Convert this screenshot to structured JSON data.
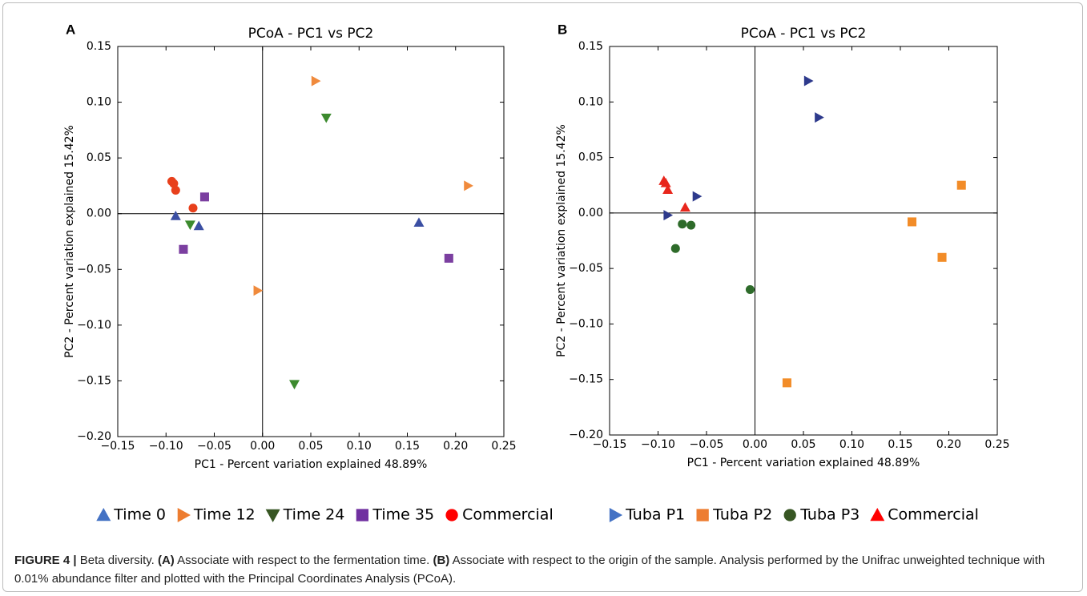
{
  "chart_data": [
    {
      "type": "scatter",
      "panel": "A",
      "title": "PCoA - PC1 vs PC2",
      "xlabel": "PC1 - Percent variation explained 48.89%",
      "ylabel": "PC2 - Percent variation explained 15.42%",
      "xlim": [
        -0.15,
        0.25
      ],
      "ylim": [
        -0.2,
        0.15
      ],
      "xticks": [
        {
          "value": -0.15,
          "label": "−0.15"
        },
        {
          "value": -0.1,
          "label": "−0.10"
        },
        {
          "value": -0.05,
          "label": "−0.05"
        },
        {
          "value": 0,
          "label": "0.00"
        },
        0.05,
        {
          "value": 0.1,
          "label": "0.10"
        },
        0.15,
        {
          "value": 0.2,
          "label": "0.20"
        },
        0.25
      ],
      "yticks": [
        {
          "value": -0.2,
          "label": "−0.20"
        },
        {
          "value": -0.15,
          "label": "−0.15"
        },
        {
          "value": -0.1,
          "label": "−0.10"
        },
        {
          "value": -0.05,
          "label": "−0.05"
        },
        {
          "value": 0,
          "label": "0.00"
        },
        0.05,
        {
          "value": 0.1,
          "label": "0.10"
        },
        0.15
      ],
      "zero_lines": true,
      "series": [
        {
          "name": "Time 0",
          "color": "#3b4fa3",
          "legend_color": "#4472c4",
          "marker": "^",
          "x": [
            -0.09,
            -0.066,
            0.162
          ],
          "values": [
            -0.002,
            -0.011,
            -0.008
          ]
        },
        {
          "name": "Time 12",
          "color": "#f08a3c",
          "legend_color": "#ed7d31",
          "marker": ">",
          "x": [
            0.055,
            0.213,
            -0.005
          ],
          "values": [
            0.119,
            0.025,
            -0.069
          ]
        },
        {
          "name": "Time 24",
          "color": "#3c8a2e",
          "legend_color": "#375623",
          "marker": "v",
          "x": [
            0.066,
            -0.075,
            0.033
          ],
          "values": [
            0.086,
            -0.01,
            -0.153
          ]
        },
        {
          "name": "Time 35",
          "color": "#7b3fa0",
          "legend_color": "#7030a0",
          "marker": "s",
          "x": [
            -0.06,
            -0.082,
            0.193
          ],
          "values": [
            0.015,
            -0.032,
            -0.04
          ]
        },
        {
          "name": "Commercial",
          "color": "#e8401c",
          "legend_color": "#ff0000",
          "marker": "o",
          "x": [
            -0.094,
            -0.092,
            -0.09,
            -0.072
          ],
          "values": [
            0.029,
            0.027,
            0.021,
            0.005
          ]
        }
      ]
    },
    {
      "type": "scatter",
      "panel": "B",
      "title": "PCoA - PC1 vs PC2",
      "xlabel": "PC1 - Percent variation explained 48.89%",
      "ylabel": "PC2 - Percent variation explained 15.42%",
      "xlim": [
        -0.15,
        0.25
      ],
      "ylim": [
        -0.2,
        0.15
      ],
      "xticks": [
        {
          "value": -0.15,
          "label": "−0.15"
        },
        {
          "value": -0.1,
          "label": "−0.10"
        },
        {
          "value": -0.05,
          "label": "−0.05"
        },
        {
          "value": 0,
          "label": "0.00"
        },
        0.05,
        {
          "value": 0.1,
          "label": "0.10"
        },
        0.15,
        {
          "value": 0.2,
          "label": "0.20"
        },
        0.25
      ],
      "yticks": [
        {
          "value": -0.2,
          "label": "−0.20"
        },
        {
          "value": -0.15,
          "label": "−0.15"
        },
        {
          "value": -0.1,
          "label": "−0.10"
        },
        {
          "value": -0.05,
          "label": "−0.05"
        },
        {
          "value": 0,
          "label": "0.00"
        },
        0.05,
        {
          "value": 0.1,
          "label": "0.10"
        },
        0.15
      ],
      "zero_lines": true,
      "series": [
        {
          "name": "Tuba P1",
          "color": "#2e3a8c",
          "legend_color": "#4472c4",
          "marker": ">",
          "x": [
            0.055,
            0.066,
            -0.06,
            -0.09
          ],
          "values": [
            0.119,
            0.086,
            0.015,
            -0.002
          ]
        },
        {
          "name": "Tuba P2",
          "color": "#f28c28",
          "legend_color": "#ed7d31",
          "marker": "s",
          "x": [
            0.213,
            0.162,
            0.193,
            0.033
          ],
          "values": [
            0.025,
            -0.008,
            -0.04,
            -0.153
          ]
        },
        {
          "name": "Tuba P3",
          "color": "#2e6b2a",
          "legend_color": "#375623",
          "marker": "o",
          "x": [
            -0.075,
            -0.066,
            -0.082,
            -0.005
          ],
          "values": [
            -0.01,
            -0.011,
            -0.032,
            -0.069
          ]
        },
        {
          "name": "Commercial",
          "color": "#e8261c",
          "legend_color": "#ff0000",
          "marker": "^",
          "x": [
            -0.094,
            -0.092,
            -0.09,
            -0.072
          ],
          "values": [
            0.029,
            0.027,
            0.021,
            0.005
          ]
        }
      ]
    }
  ],
  "caption": {
    "label": "FIGURE 4 |",
    "segments": [
      {
        "text": "Beta diversity.",
        "bold": false
      },
      {
        "text": "(A)",
        "bold": true
      },
      {
        "text": "Associate with respect to the fermentation time.",
        "bold": false
      },
      {
        "text": "(B)",
        "bold": true
      },
      {
        "text": "Associate with respect to the origin of the sample. Analysis performed by the Unifrac unweighted technique with 0.01% abundance filter and plotted with the Principal Coordinates Analysis (PCoA).",
        "bold": false
      }
    ]
  }
}
